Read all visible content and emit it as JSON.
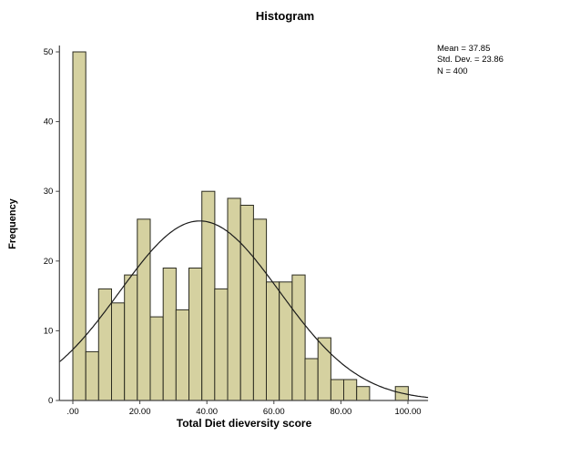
{
  "title": "Histogram",
  "stats": {
    "mean_label": "Mean = 37.85",
    "std_dev_label": "Std. Dev. = 23.86",
    "n_label": "N = 400"
  },
  "x_axis": {
    "label": "Total Diet dieversity score",
    "tick_labels": [
      ".00",
      "20.00",
      "40.00",
      "60.00",
      "80.00",
      "100.00"
    ],
    "tick_values": [
      0,
      20,
      40,
      60,
      80,
      100
    ]
  },
  "y_axis": {
    "label": "Frequency",
    "tick_labels": [
      "0",
      "10",
      "20",
      "30",
      "40",
      "50"
    ],
    "tick_values": [
      0,
      10,
      20,
      30,
      40,
      50
    ]
  },
  "chart_data": {
    "type": "histogram",
    "title": "Histogram",
    "xlabel": "Total Diet dieversity score",
    "ylabel": "Frequency",
    "bin_start": 0,
    "bin_width": 3.85,
    "values": [
      50,
      7,
      16,
      14,
      18,
      26,
      12,
      19,
      13,
      19,
      30,
      16,
      29,
      28,
      26,
      17,
      17,
      18,
      6,
      9,
      3,
      3,
      2,
      0,
      0,
      2
    ],
    "normal_curve": {
      "mean": 37.85,
      "std_dev": 23.86,
      "n": 400
    },
    "x_range": [
      -4,
      106
    ],
    "y_range": [
      0,
      50
    ],
    "legend": "none",
    "grid": false,
    "bar_fill": "#d5d1a0",
    "bar_stroke": "#2b2b20",
    "curve_color": "#1a1a1a",
    "axis_color": "#444444"
  }
}
